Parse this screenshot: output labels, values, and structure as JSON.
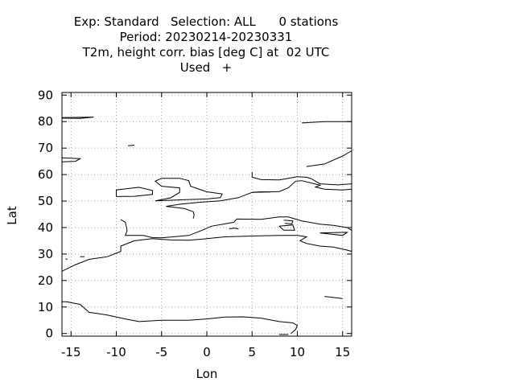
{
  "title": {
    "line1": "Exp: Standard   Selection: ALL      0 stations",
    "line2": "Period: 20230214-20230331",
    "line3": "T2m, height corr. bias [deg C] at  02 UTC",
    "line4": "Used   +"
  },
  "map": {
    "xlabel": "Lon",
    "ylabel": "Lat",
    "xlim": [
      -16,
      16
    ],
    "ylim": [
      -1,
      91
    ],
    "xticks": [
      -15,
      -10,
      -5,
      0,
      5,
      10,
      15
    ],
    "yticks": [
      0,
      10,
      20,
      30,
      40,
      50,
      60,
      70,
      80,
      90
    ],
    "grid": true,
    "coastline_color": "#000000",
    "grid_color": "#a0a0a0"
  },
  "coastlines": [
    [
      [
        -16,
        23.5
      ],
      [
        -14.5,
        26
      ],
      [
        -13,
        28
      ],
      [
        -11,
        29
      ],
      [
        -9.5,
        31
      ],
      [
        -9.5,
        33
      ],
      [
        -8,
        35
      ],
      [
        -6,
        35.8
      ],
      [
        -4,
        35.3
      ],
      [
        -2,
        35.2
      ],
      [
        0,
        35.8
      ],
      [
        2,
        36.5
      ],
      [
        5,
        36.8
      ],
      [
        8,
        37
      ],
      [
        10,
        37
      ],
      [
        11,
        36.5
      ],
      [
        10.3,
        35
      ],
      [
        11,
        34
      ],
      [
        12.5,
        33
      ],
      [
        14,
        32.6
      ],
      [
        15.5,
        31.5
      ],
      [
        16,
        31
      ]
    ],
    [
      [
        -16,
        12
      ],
      [
        -15.5,
        12
      ],
      [
        -14,
        11
      ],
      [
        -13,
        8
      ],
      [
        -11,
        7
      ],
      [
        -9,
        5.5
      ],
      [
        -7.5,
        4.5
      ],
      [
        -5,
        5
      ],
      [
        -2,
        5
      ],
      [
        0,
        5.5
      ],
      [
        2,
        6.2
      ],
      [
        4,
        6.3
      ],
      [
        6,
        5.8
      ],
      [
        8,
        4.5
      ],
      [
        9.5,
        4
      ],
      [
        10,
        3
      ],
      [
        9.8,
        1.5
      ],
      [
        9.3,
        0
      ]
    ],
    [
      [
        -9.5,
        43
      ],
      [
        -9,
        42
      ],
      [
        -8.8,
        39
      ],
      [
        -9,
        37
      ],
      [
        -7,
        37
      ],
      [
        -6,
        36.2
      ],
      [
        -5,
        36.1
      ],
      [
        -2,
        37
      ],
      [
        -0.5,
        39
      ],
      [
        0.5,
        40.5
      ],
      [
        3,
        42
      ],
      [
        3.3,
        43.2
      ],
      [
        6,
        43.1
      ],
      [
        8,
        44
      ],
      [
        9,
        44
      ],
      [
        10.5,
        42.5
      ],
      [
        12.5,
        41.3
      ],
      [
        14,
        40.8
      ],
      [
        15.5,
        40
      ],
      [
        16,
        39
      ]
    ],
    [
      [
        -1.5,
        43.4
      ],
      [
        -1.4,
        44.7
      ],
      [
        -1.5,
        46
      ],
      [
        -2.5,
        47.2
      ],
      [
        -4.5,
        48
      ],
      [
        -3,
        48.8
      ],
      [
        -1,
        49.5
      ],
      [
        1.5,
        50.1
      ],
      [
        3.5,
        51.3
      ],
      [
        5,
        53.3
      ],
      [
        8,
        53.6
      ],
      [
        9,
        55
      ],
      [
        9.8,
        57.5
      ],
      [
        10.5,
        57.7
      ],
      [
        12.5,
        56
      ],
      [
        12,
        55.3
      ],
      [
        13,
        54.5
      ],
      [
        15,
        54.2
      ],
      [
        16,
        54.5
      ]
    ],
    [
      [
        -5.7,
        50.1
      ],
      [
        -4,
        51.2
      ],
      [
        -3,
        53.3
      ],
      [
        -3,
        55
      ],
      [
        -5,
        55.6
      ],
      [
        -5.7,
        57.5
      ],
      [
        -5,
        58.6
      ],
      [
        -3,
        58.6
      ],
      [
        -2,
        57.7
      ],
      [
        -1.8,
        55.6
      ],
      [
        0,
        53.5
      ],
      [
        1.7,
        52.7
      ],
      [
        1.5,
        51.3
      ],
      [
        0,
        50.8
      ],
      [
        -2,
        50.6
      ],
      [
        -5.7,
        50.1
      ]
    ],
    [
      [
        -10,
        51.7
      ],
      [
        -8,
        51.8
      ],
      [
        -6,
        52.5
      ],
      [
        -6,
        54
      ],
      [
        -7.5,
        55.2
      ],
      [
        -10,
        54.2
      ],
      [
        -10,
        52.5
      ],
      [
        -10,
        51.7
      ]
    ],
    [
      [
        5,
        61
      ],
      [
        5,
        59
      ],
      [
        6,
        58.1
      ],
      [
        8,
        58
      ],
      [
        10,
        59.2
      ],
      [
        11,
        59
      ],
      [
        11.5,
        58.5
      ],
      [
        12.5,
        56.5
      ],
      [
        14.5,
        56.1
      ],
      [
        16,
        56.5
      ]
    ],
    [
      [
        -16,
        66.3
      ],
      [
        -14,
        66
      ],
      [
        -14.5,
        65
      ],
      [
        -16,
        64.8
      ]
    ],
    [
      [
        -8.7,
        70.9
      ],
      [
        -8,
        71.1
      ]
    ],
    [
      [
        10.5,
        79.5
      ],
      [
        13,
        80
      ],
      [
        16,
        80
      ]
    ],
    [
      [
        -16,
        81.3
      ],
      [
        -14,
        81.2
      ],
      [
        -12.5,
        81.7
      ],
      [
        -16,
        81.5
      ]
    ],
    [
      [
        -15.4,
        28
      ],
      [
        -15.6,
        28.2
      ]
    ],
    [
      [
        -14,
        29
      ],
      [
        -13.5,
        29
      ]
    ],
    [
      [
        8,
        40.5
      ],
      [
        9.5,
        41
      ],
      [
        9.7,
        39
      ],
      [
        8.5,
        39
      ],
      [
        8,
        40.5
      ]
    ],
    [
      [
        2.5,
        39.5
      ],
      [
        3,
        39.8
      ],
      [
        3.5,
        39.5
      ]
    ],
    [
      [
        8.5,
        42.8
      ],
      [
        9.5,
        42.5
      ],
      [
        9.4,
        41.4
      ],
      [
        8.6,
        41.6
      ]
    ],
    [
      [
        12.5,
        38
      ],
      [
        14,
        38.1
      ],
      [
        15.5,
        38.2
      ],
      [
        15,
        37
      ],
      [
        12.5,
        38
      ]
    ],
    [
      [
        8,
        -0.4
      ],
      [
        9,
        -0.4
      ]
    ],
    [
      [
        13,
        14
      ],
      [
        15,
        13.2
      ]
    ],
    [
      [
        11,
        63
      ],
      [
        13,
        64
      ],
      [
        15,
        67
      ],
      [
        16,
        69
      ]
    ],
    [
      [
        5,
        53.3
      ],
      [
        6,
        53.5
      ],
      [
        7,
        53.4
      ]
    ]
  ]
}
